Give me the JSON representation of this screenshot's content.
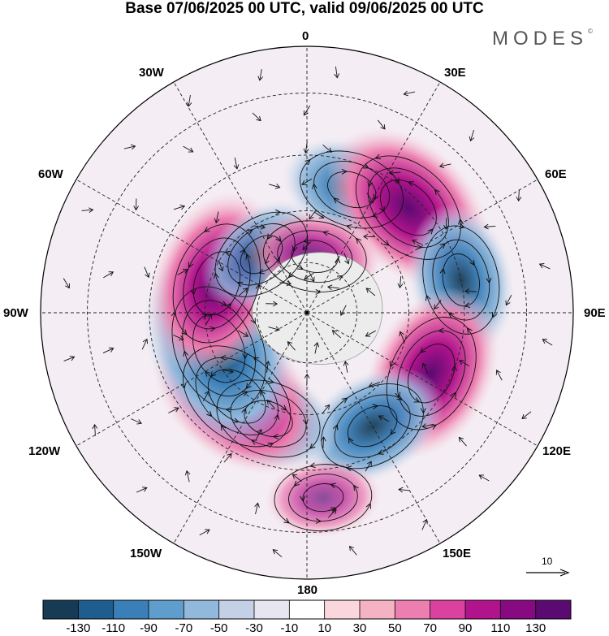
{
  "title": "Base 07/06/2025 00 UTC, valid 09/06/2025 00 UTC",
  "brand": "MODES",
  "brand_mark": "©",
  "longitude_labels": {
    "lon_0": "0",
    "lon_30e": "30E",
    "lon_60e": "60E",
    "lon_90e": "90E",
    "lon_120e": "120E",
    "lon_150e": "150E",
    "lon_180": "180",
    "lon_150w": "150W",
    "lon_120w": "120W",
    "lon_90w": "90W",
    "lon_60w": "60W",
    "lon_30w": "30W"
  },
  "colorbar": {
    "ticks": [
      "-130",
      "-110",
      "-90",
      "-70",
      "-50",
      "-30",
      "-10",
      "10",
      "30",
      "50",
      "70",
      "90",
      "110",
      "130"
    ],
    "colors": [
      "#183b55",
      "#1f5d8e",
      "#3a7fb8",
      "#5f9ecc",
      "#92b9dc",
      "#c3d0e6",
      "#e7e5f0",
      "#ffffff",
      "#fad7dc",
      "#f5b2c3",
      "#ec7fb0",
      "#db42a0",
      "#b0138c",
      "#870a83",
      "#5b0a72"
    ]
  },
  "reference_vector": {
    "label": "10"
  },
  "anomalies": [
    {
      "lon": 20,
      "lat": 52,
      "value": -70
    },
    {
      "lon": 44,
      "lat": 48,
      "value": 120
    },
    {
      "lon": 78,
      "lat": 45,
      "value": -80
    },
    {
      "lon": 116,
      "lat": 50,
      "value": 110
    },
    {
      "lon": 150,
      "lat": 52,
      "value": -80
    },
    {
      "lon": 175,
      "lat": 38,
      "value": 40
    },
    {
      "lon": -160,
      "lat": 57,
      "value": -70
    },
    {
      "lon": -140,
      "lat": 58,
      "value": 120
    },
    {
      "lon": -112,
      "lat": 62,
      "value": -140
    },
    {
      "lon": -72,
      "lat": 62,
      "value": 120
    },
    {
      "lon": -38,
      "lat": 68,
      "value": -60
    },
    {
      "lon": 8,
      "lat": 73,
      "value": 60
    }
  ]
}
